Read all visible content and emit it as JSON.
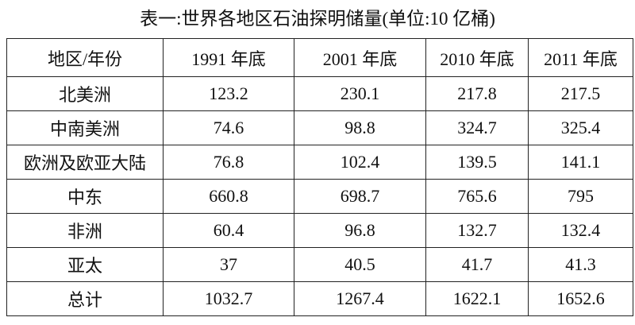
{
  "title": "表一:世界各地区石油探明储量(单位:10 亿桶)",
  "table": {
    "header": [
      "地区/年份",
      "1991 年底",
      "2001 年底",
      "2010 年底",
      "2011 年底"
    ],
    "rows": [
      [
        "北美洲",
        "123.2",
        "230.1",
        "217.8",
        "217.5"
      ],
      [
        "中南美洲",
        "74.6",
        "98.8",
        "324.7",
        "325.4"
      ],
      [
        "欧洲及欧亚大陆",
        "76.8",
        "102.4",
        "139.5",
        "141.1"
      ],
      [
        "中东",
        "660.8",
        "698.7",
        "765.6",
        "795"
      ],
      [
        "非洲",
        "60.4",
        "96.8",
        "132.7",
        "132.4"
      ],
      [
        "亚太",
        "37",
        "40.5",
        "41.7",
        "41.3"
      ],
      [
        "总计",
        "1032.7",
        "1267.4",
        "1622.1",
        "1652.6"
      ]
    ]
  }
}
